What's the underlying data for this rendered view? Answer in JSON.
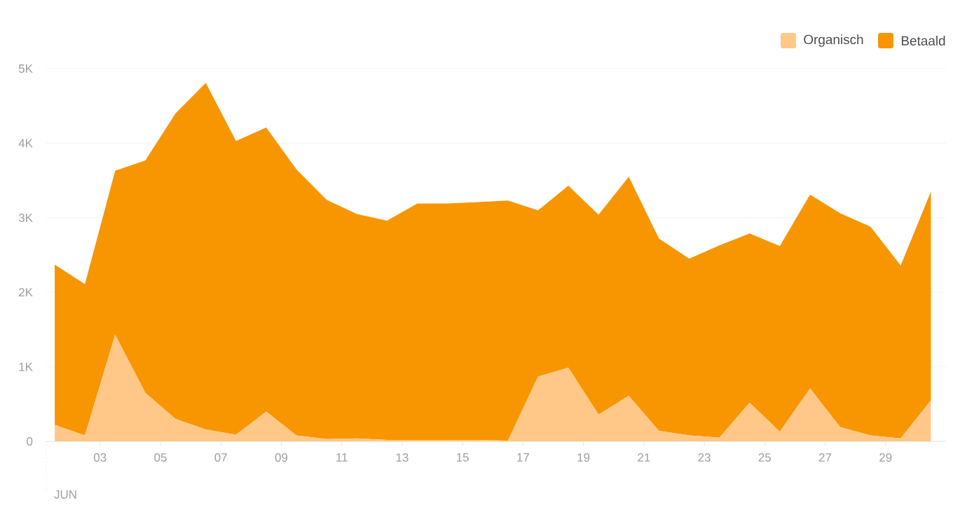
{
  "chart_data": {
    "type": "area",
    "stacked": true,
    "x": [
      1.5,
      2.5,
      3.5,
      4.5,
      5.5,
      6.5,
      7.5,
      8.5,
      9.5,
      10.5,
      11.5,
      12.5,
      13.5,
      14.5,
      15.5,
      16.5,
      17.5,
      18.5,
      19.5,
      20.5,
      21.5,
      22.5,
      23.5,
      24.5,
      25.5,
      26.5,
      27.5,
      28.5,
      29.5,
      30.5
    ],
    "series": [
      {
        "name": "Organisch",
        "color": "#ffc888",
        "values": [
          220,
          80,
          1430,
          650,
          300,
          160,
          90,
          400,
          80,
          30,
          40,
          20,
          20,
          20,
          20,
          10,
          870,
          990,
          360,
          610,
          140,
          80,
          50,
          520,
          130,
          710,
          190,
          80,
          40,
          550
        ]
      },
      {
        "name": "Betaald",
        "color": "#f79600",
        "values": [
          2150,
          2030,
          2200,
          3120,
          4100,
          4650,
          3940,
          3810,
          3570,
          3210,
          3010,
          2940,
          3170,
          3170,
          3190,
          3220,
          2230,
          2440,
          2680,
          2940,
          2580,
          2370,
          2580,
          2270,
          2490,
          2600,
          2870,
          2800,
          2320,
          2800
        ]
      }
    ],
    "xlim": [
      1.22,
      31.0
    ],
    "xticks": [
      {
        "value": 3,
        "label": "03"
      },
      {
        "value": 5,
        "label": "05"
      },
      {
        "value": 7,
        "label": "07"
      },
      {
        "value": 9,
        "label": "09"
      },
      {
        "value": 11,
        "label": "11"
      },
      {
        "value": 13,
        "label": "13"
      },
      {
        "value": 15,
        "label": "15"
      },
      {
        "value": 17,
        "label": "17"
      },
      {
        "value": 19,
        "label": "19"
      },
      {
        "value": 21,
        "label": "21"
      },
      {
        "value": 23,
        "label": "23"
      },
      {
        "value": 25,
        "label": "25"
      },
      {
        "value": 27,
        "label": "27"
      },
      {
        "value": 29,
        "label": "29"
      }
    ],
    "ylim": [
      0,
      5000
    ],
    "yticks": [
      0,
      {
        "value": 1000,
        "label": "1K"
      },
      {
        "value": 2000,
        "label": "2K"
      },
      {
        "value": 3000,
        "label": "3K"
      },
      {
        "value": 4000,
        "label": "4K"
      },
      {
        "value": 5000,
        "label": "5K"
      }
    ],
    "grid": "y",
    "legend": "top right",
    "annotations": [
      "JUN"
    ]
  }
}
